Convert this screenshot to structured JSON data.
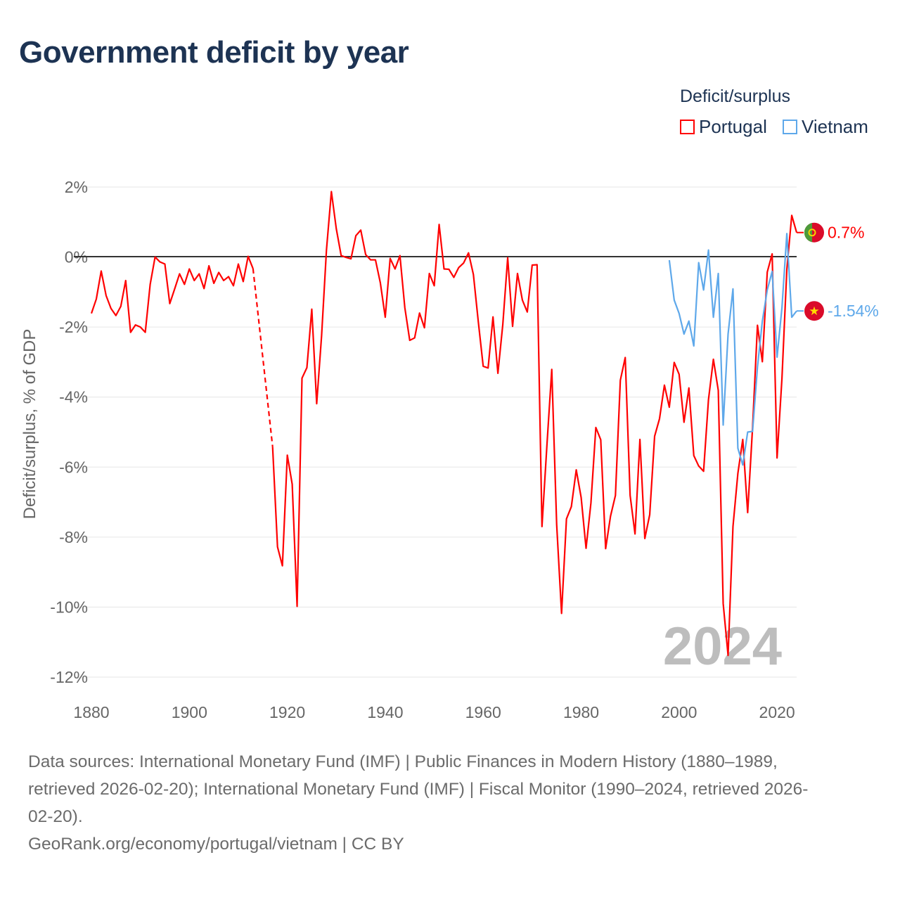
{
  "title": "Government deficit by year",
  "legend": {
    "title": "Deficit/surplus",
    "items": [
      {
        "label": "Portugal",
        "color": "#ff0000"
      },
      {
        "label": "Vietnam",
        "color": "#5ea8ea"
      }
    ]
  },
  "footer": {
    "lines": [
      "Data sources: International Monetary Fund (IMF) | Public Finances in Modern History (1880–1989,",
      "retrieved 2026-02-20); International Monetary Fund (IMF) | Fiscal Monitor (1990–2024, retrieved 2026-",
      "02-20).",
      "GeoRank.org/economy/portugal/vietnam | CC BY"
    ]
  },
  "chart_data": {
    "type": "line",
    "title": "Government deficit by year",
    "xlabel": "",
    "ylabel": "Deficit/surplus, % of GDP",
    "xlim": [
      1880,
      2024
    ],
    "ylim": [
      -12,
      2
    ],
    "xticks": [
      1880,
      1900,
      1920,
      1940,
      1960,
      1980,
      2000,
      2020
    ],
    "xtick_labels": [
      "1880",
      "1900",
      "1920",
      "1940",
      "1960",
      "1980",
      "2000",
      "2020"
    ],
    "yticks": [
      2,
      0,
      -2,
      -4,
      -6,
      -8,
      -10,
      -12
    ],
    "ytick_labels": [
      "2%",
      "0%",
      "-2%",
      "-4%",
      "-6%",
      "-8%",
      "-10%",
      "-12%"
    ],
    "grid": true,
    "legend_position": "top-right",
    "current_year": "2024",
    "series": [
      {
        "name": "Portugal",
        "color": "#ff0000",
        "flag_icon": "portugal-flag-icon",
        "end_label": "0.7%",
        "year_start": 1880,
        "values": [
          -1.61,
          -1.2,
          -0.4,
          -1.1,
          -1.47,
          -1.67,
          -1.41,
          -0.67,
          -2.15,
          -1.94,
          -2.0,
          -2.15,
          -0.78,
          0.0,
          -0.14,
          -0.2,
          -1.33,
          -0.91,
          -0.48,
          -0.78,
          -0.34,
          -0.67,
          -0.48,
          -0.9,
          -0.25,
          -0.75,
          -0.44,
          -0.67,
          -0.56,
          -0.82,
          -0.2,
          -0.7,
          0.02,
          -0.33,
          null,
          null,
          null,
          -5.42,
          -8.28,
          -8.82,
          -5.66,
          -6.49,
          -9.98,
          -3.46,
          -3.16,
          -1.49,
          -4.19,
          -2.25,
          0.21,
          1.87,
          0.81,
          0.04,
          -0.01,
          -0.05,
          0.61,
          0.77,
          0.07,
          -0.08,
          -0.08,
          -0.74,
          -1.72,
          -0.04,
          -0.34,
          0.04,
          -1.45,
          -2.38,
          -2.31,
          -1.6,
          -2.02,
          -0.47,
          -0.82,
          0.93,
          -0.34,
          -0.35,
          -0.58,
          -0.3,
          -0.17,
          0.12,
          -0.5,
          -1.85,
          -3.12,
          -3.17,
          -1.71,
          -3.32,
          -1.93,
          -0.02,
          -1.98,
          -0.47,
          -1.23,
          -1.57,
          -0.23,
          -0.22,
          -7.7,
          -5.4,
          -3.21,
          -7.64,
          -10.18,
          -7.48,
          -7.13,
          -6.08,
          -6.87,
          -8.32,
          -7.02,
          -4.87,
          -5.22,
          -8.33,
          -7.4,
          -6.81,
          -3.52,
          -2.87,
          -6.81,
          -7.91,
          -5.21,
          -8.04,
          -7.36,
          -5.12,
          -4.62,
          -3.66,
          -4.29,
          -3.01,
          -3.35,
          -4.72,
          -3.74,
          -5.67,
          -5.97,
          -6.12,
          -4.07,
          -2.92,
          -3.81,
          -9.9,
          -11.38,
          -7.7,
          -6.18,
          -5.21,
          -7.3,
          -4.87,
          -1.95,
          -2.99,
          -0.43,
          0.09,
          -5.74,
          -3.47,
          -0.35,
          1.19,
          0.7
        ]
      },
      {
        "name": "Vietnam",
        "color": "#5ea8ea",
        "flag_icon": "vietnam-flag-icon",
        "end_label": "-1.54%",
        "year_start": 1998,
        "values": [
          -0.09,
          -1.23,
          -1.61,
          -2.2,
          -1.83,
          -2.54,
          -0.16,
          -0.94,
          0.2,
          -1.72,
          -0.47,
          -4.8,
          -2.2,
          -0.91,
          -5.46,
          -5.94,
          -5.0,
          -4.98,
          -3.14,
          -1.83,
          -0.94,
          -0.41,
          -2.86,
          -1.45,
          0.67,
          -1.72,
          -1.54
        ]
      }
    ]
  }
}
